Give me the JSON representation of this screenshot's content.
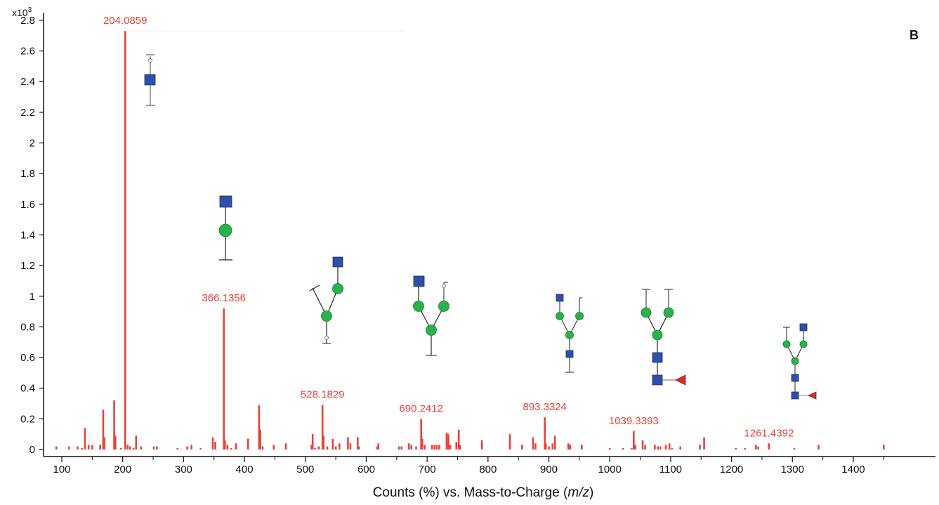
{
  "chart_data": {
    "type": "bar",
    "panel_label": "B",
    "y_multiplier": "x10",
    "y_multiplier_exp": "3",
    "xlabel_prefix": "Counts (%) vs. Mass-to-Charge (",
    "xlabel_italic": "m/z",
    "xlabel_suffix": ")",
    "xlim": [
      70,
      1535
    ],
    "ylim": [
      0,
      2.85
    ],
    "x_ticks": [
      100,
      200,
      300,
      400,
      500,
      600,
      700,
      800,
      900,
      1000,
      1100,
      1200,
      1300,
      1400
    ],
    "y_ticks": [
      0,
      0.2,
      0.4,
      0.6,
      0.8,
      1,
      1.2,
      1.4,
      1.6,
      1.8,
      2,
      2.2,
      2.4,
      2.6,
      2.8
    ],
    "y_tick_labels": [
      "0",
      "0.2",
      "0.4",
      "0.6",
      "0.8",
      "1",
      "1.2",
      "1.4",
      "1.6",
      "1.8",
      "2",
      "2.2",
      "2.4",
      "2.6",
      "2.8"
    ],
    "bar_color": "#e8423a",
    "peak_labels": [
      {
        "mz": 204.0859,
        "label": "204.0859",
        "intensity": 2.73
      },
      {
        "mz": 366.1356,
        "label": "366.1356",
        "intensity": 0.92
      },
      {
        "mz": 528.1829,
        "label": "528.1829",
        "intensity": 0.29
      },
      {
        "mz": 690.2412,
        "label": "690.2412",
        "intensity": 0.2
      },
      {
        "mz": 893.3324,
        "label": "893.3324",
        "intensity": 0.21
      },
      {
        "mz": 1039.3393,
        "label": "1039.3393",
        "intensity": 0.12
      },
      {
        "mz": 1261.4392,
        "label": "1261.4392",
        "intensity": 0.04
      }
    ],
    "peaks": [
      [
        91,
        0.02
      ],
      [
        112,
        0.02
      ],
      [
        126,
        0.02
      ],
      [
        133,
        0.01
      ],
      [
        138,
        0.14
      ],
      [
        144,
        0.03
      ],
      [
        150,
        0.03
      ],
      [
        163,
        0.03
      ],
      [
        168,
        0.26
      ],
      [
        170,
        0.08
      ],
      [
        186,
        0.32
      ],
      [
        188,
        0.09
      ],
      [
        197,
        0.01
      ],
      [
        204.0859,
        2.73
      ],
      [
        208,
        0.03
      ],
      [
        212,
        0.02
      ],
      [
        218,
        0.01
      ],
      [
        222,
        0.09
      ],
      [
        230,
        0.02
      ],
      [
        251,
        0.02
      ],
      [
        256,
        0.02
      ],
      [
        290,
        0.01
      ],
      [
        306,
        0.02
      ],
      [
        313,
        0.03
      ],
      [
        328,
        0.01
      ],
      [
        348,
        0.08
      ],
      [
        352,
        0.05
      ],
      [
        366.1356,
        0.92
      ],
      [
        368,
        0.06
      ],
      [
        372,
        0.03
      ],
      [
        378,
        0.01
      ],
      [
        386,
        0.04
      ],
      [
        406,
        0.07
      ],
      [
        424,
        0.29
      ],
      [
        426,
        0.13
      ],
      [
        430,
        0.02
      ],
      [
        448,
        0.03
      ],
      [
        468,
        0.04
      ],
      [
        510,
        0.03
      ],
      [
        512,
        0.1
      ],
      [
        516,
        0.01
      ],
      [
        522,
        0.02
      ],
      [
        528.1829,
        0.29
      ],
      [
        530,
        0.09
      ],
      [
        536,
        0.02
      ],
      [
        545,
        0.07
      ],
      [
        550,
        0.02
      ],
      [
        556,
        0.04
      ],
      [
        570,
        0.08
      ],
      [
        574,
        0.04
      ],
      [
        586,
        0.08
      ],
      [
        588,
        0.02
      ],
      [
        618,
        0.02
      ],
      [
        620,
        0.04
      ],
      [
        654,
        0.02
      ],
      [
        658,
        0.02
      ],
      [
        670,
        0.04
      ],
      [
        674,
        0.03
      ],
      [
        682,
        0.02
      ],
      [
        690.2412,
        0.2
      ],
      [
        692,
        0.07
      ],
      [
        696,
        0.03
      ],
      [
        708,
        0.03
      ],
      [
        712,
        0.03
      ],
      [
        716,
        0.03
      ],
      [
        720,
        0.03
      ],
      [
        732,
        0.11
      ],
      [
        735,
        0.1
      ],
      [
        738,
        0.03
      ],
      [
        748,
        0.05
      ],
      [
        752,
        0.13
      ],
      [
        754,
        0.03
      ],
      [
        790,
        0.06
      ],
      [
        836,
        0.1
      ],
      [
        856,
        0.03
      ],
      [
        874,
        0.08
      ],
      [
        878,
        0.04
      ],
      [
        893.3324,
        0.21
      ],
      [
        895,
        0.04
      ],
      [
        900,
        0.02
      ],
      [
        906,
        0.04
      ],
      [
        910,
        0.09
      ],
      [
        932,
        0.04
      ],
      [
        935,
        0.03
      ],
      [
        954,
        0.03
      ],
      [
        1000,
        0.01
      ],
      [
        1022,
        0.01
      ],
      [
        1036,
        0.01
      ],
      [
        1039.3393,
        0.12
      ],
      [
        1042,
        0.03
      ],
      [
        1054,
        0.06
      ],
      [
        1058,
        0.03
      ],
      [
        1074,
        0.03
      ],
      [
        1079,
        0.02
      ],
      [
        1083,
        0.02
      ],
      [
        1092,
        0.03
      ],
      [
        1098,
        0.04
      ],
      [
        1102,
        0.01
      ],
      [
        1116,
        0.02
      ],
      [
        1148,
        0.03
      ],
      [
        1155,
        0.08
      ],
      [
        1207,
        0.01
      ],
      [
        1222,
        0.01
      ],
      [
        1240,
        0.03
      ],
      [
        1244,
        0.02
      ],
      [
        1261.4392,
        0.04
      ],
      [
        1303,
        0.01
      ],
      [
        1343,
        0.03
      ],
      [
        1450,
        0.03
      ]
    ]
  }
}
